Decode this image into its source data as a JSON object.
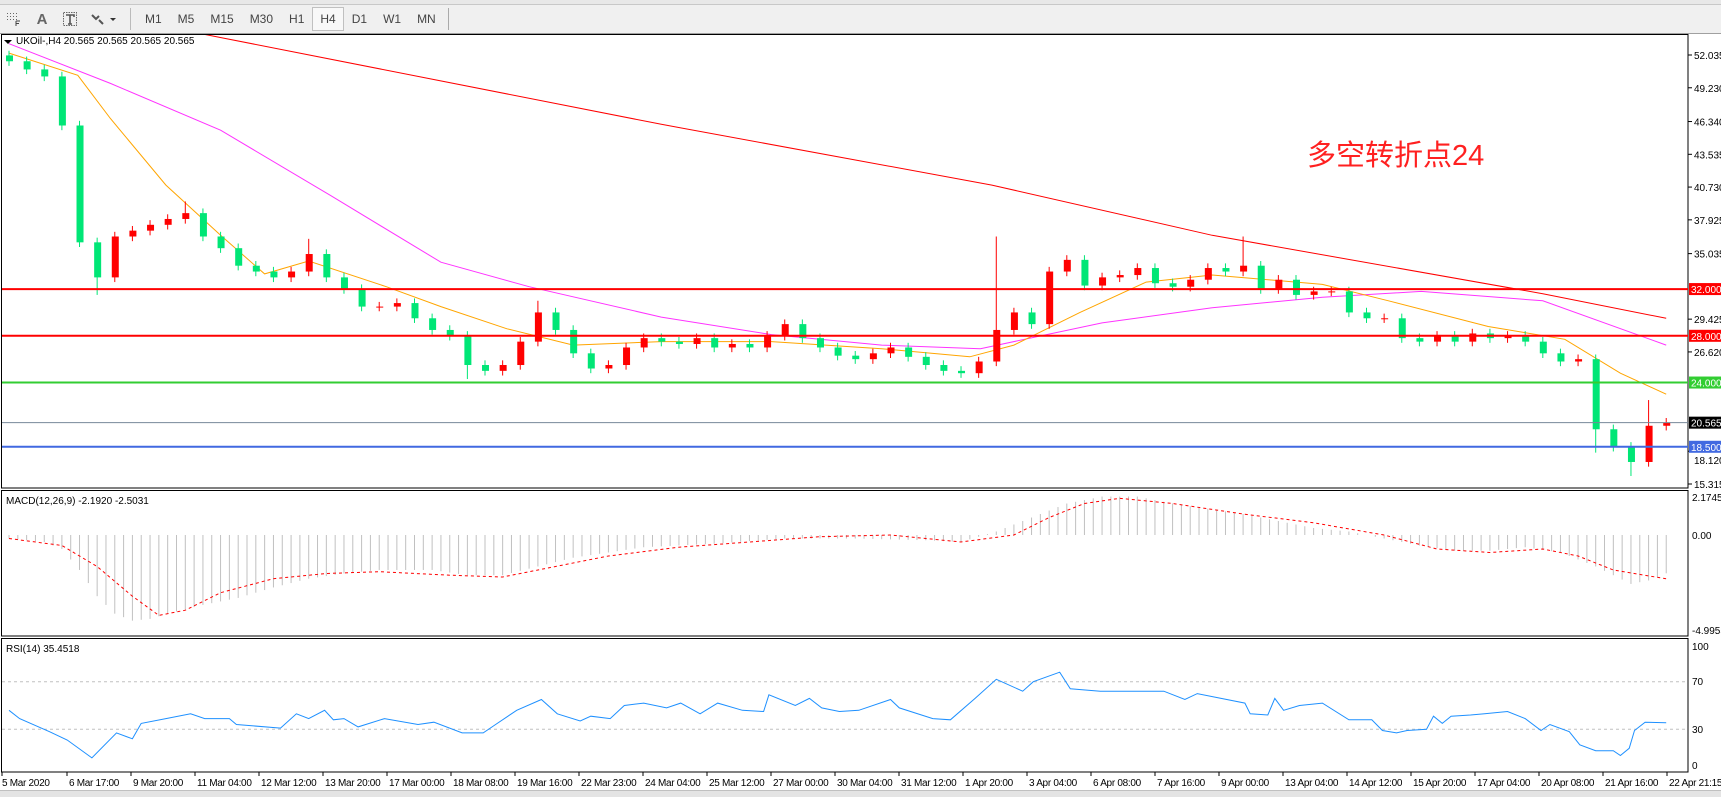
{
  "toolbar": {
    "icons": [
      "grid-period-icon",
      "text-icon",
      "text-label-icon",
      "arrows-icon"
    ],
    "text_tool": "A",
    "timeframes": [
      "M1",
      "M5",
      "M15",
      "M30",
      "H1",
      "H4",
      "D1",
      "W1",
      "MN"
    ],
    "active_timeframe": "H4"
  },
  "main_panel": {
    "title": "UKOil-,H4  20.565 20.565 20.565 20.565",
    "annotation": "多空转折点24",
    "annotation_color": "#ff2020"
  },
  "macd_panel": {
    "label": "MACD(12,26,9) -2.1920 -2.5031",
    "axis_ticks": [
      "2.1745",
      "0.00",
      "-4.9955"
    ]
  },
  "rsi_panel": {
    "label": "RSI(14) 35.4518",
    "axis_ticks": [
      "100",
      "70",
      "30",
      "0"
    ]
  },
  "chart_data": {
    "type": "candlestick",
    "symbol": "UKOil-",
    "timeframe": "H4",
    "ylim": [
      15.315,
      53.6
    ],
    "price_ticks": [
      "52.035",
      "49.230",
      "46.340",
      "43.535",
      "40.730",
      "37.925",
      "35.035",
      "29.425",
      "26.620",
      "18.120",
      "15.315"
    ],
    "x_tick_labels": [
      "5 Mar 2020",
      "6 Mar 17:00",
      "9 Mar 20:00",
      "11 Mar 04:00",
      "12 Mar 12:00",
      "13 Mar 20:00",
      "17 Mar 00:00",
      "18 Mar 08:00",
      "19 Mar 16:00",
      "22 Mar 23:00",
      "24 Mar 04:00",
      "25 Mar 12:00",
      "27 Mar 00:00",
      "30 Mar 04:00",
      "31 Mar 12:00",
      "1 Apr 20:00",
      "3 Apr 04:00",
      "6 Apr 08:00",
      "7 Apr 16:00",
      "9 Apr 00:00",
      "13 Apr 04:00",
      "14 Apr 12:00",
      "15 Apr 20:00",
      "17 Apr 04:00",
      "20 Apr 08:00",
      "21 Apr 16:00",
      "22 Apr 21:15"
    ],
    "colors": {
      "up": "#ff0000",
      "down": "#00e676",
      "ma_slow": "#ff0000",
      "ma_mid": "#ff33ff",
      "ma_fast": "#ffa500"
    },
    "first_open": 52.0,
    "close": [
      51.5,
      50.8,
      50.2,
      46.0,
      36.0,
      33.0,
      36.5,
      37.0,
      37.5,
      38.0,
      38.5,
      36.5,
      35.5,
      34.0,
      33.5,
      33.0,
      33.5,
      35.0,
      33.0,
      32.0,
      30.5,
      30.5,
      30.8,
      29.5,
      28.5,
      28.0,
      25.5,
      25.0,
      25.5,
      27.5,
      30.0,
      28.5,
      26.5,
      25.2,
      25.5,
      27.0,
      27.8,
      27.5,
      27.3,
      27.8,
      27.0,
      27.3,
      27.0,
      28.0,
      29.0,
      27.8,
      27.0,
      26.3,
      26.0,
      26.5,
      27.0,
      26.2,
      25.5,
      25.0,
      24.8,
      25.8,
      28.5,
      30.0,
      29.0,
      33.5,
      34.5,
      32.3,
      33.0,
      33.2,
      33.8,
      32.5,
      32.2,
      32.8,
      33.8,
      33.5,
      34.0,
      32.0,
      32.8,
      31.5,
      31.8,
      31.8,
      30.0,
      29.5,
      29.5,
      27.8,
      27.5,
      28.0,
      27.5,
      28.2,
      27.8,
      28.0,
      27.5,
      26.5,
      25.8,
      26.0,
      20.0,
      18.5,
      17.2,
      20.3,
      20.565
    ],
    "high_extremes": {
      "10": 39.5,
      "17": 36.3,
      "30": 31.0,
      "56": 36.5,
      "70": 36.5,
      "93": 22.5
    },
    "low_extremes": {
      "5": 31.5,
      "26": 24.3,
      "90": 18.0,
      "92": 16.0
    },
    "moving_averages": [
      {
        "color": "#ff0000",
        "points": [
          [
            10.75,
            53.9
          ],
          [
            37,
            46.1
          ],
          [
            55.75,
            40.9
          ],
          [
            68.25,
            36.6
          ],
          [
            87,
            31.6
          ],
          [
            94,
            29.5
          ]
        ]
      },
      {
        "color": "#ff33ff",
        "points": [
          [
            0,
            53
          ],
          [
            5.75,
            49.6
          ],
          [
            12,
            45.6
          ],
          [
            18.25,
            40
          ],
          [
            24.5,
            34.3
          ],
          [
            29.5,
            32.2
          ],
          [
            37,
            29.6
          ],
          [
            43.25,
            28.1
          ],
          [
            49.5,
            27.2
          ],
          [
            55.1,
            26.9
          ],
          [
            62,
            29.1
          ],
          [
            68.25,
            30.4
          ],
          [
            74.5,
            31.3
          ],
          [
            80.1,
            31.8
          ],
          [
            87,
            31
          ],
          [
            94,
            27.2
          ]
        ]
      },
      {
        "color": "#ffa500",
        "points": [
          [
            0,
            52.2
          ],
          [
            3.9,
            50.3
          ],
          [
            5.75,
            46.6
          ],
          [
            8.9,
            40.9
          ],
          [
            12,
            36.6
          ],
          [
            14.5,
            33.3
          ],
          [
            17,
            34.4
          ],
          [
            21.4,
            32.2
          ],
          [
            24.5,
            30.5
          ],
          [
            28.25,
            28.6
          ],
          [
            32,
            27.2
          ],
          [
            37,
            27.5
          ],
          [
            43.25,
            27.5
          ],
          [
            49.5,
            26.9
          ],
          [
            54.5,
            26.2
          ],
          [
            57,
            27.2
          ],
          [
            60.75,
            30
          ],
          [
            64.5,
            32.6
          ],
          [
            68.25,
            33.2
          ],
          [
            74.5,
            32.4
          ],
          [
            78.25,
            31
          ],
          [
            83.9,
            28.8
          ],
          [
            88.25,
            27.7
          ],
          [
            91.4,
            24.8
          ],
          [
            94,
            23.0
          ]
        ]
      }
    ],
    "horizontal_lines": [
      {
        "value": 32.0,
        "label": "32.000",
        "color": "#ff0000",
        "label_text_color": "#ffffff",
        "width": 2
      },
      {
        "value": 28.0,
        "label": "28.000",
        "color": "#ff0000",
        "label_text_color": "#ffffff",
        "width": 2
      },
      {
        "value": 24.0,
        "label": "24.000",
        "color": "#32cd32",
        "label_text_color": "#ffffff",
        "width": 2
      },
      {
        "value": 20.565,
        "label": "20.565",
        "color": "#778899",
        "label_bg": "#000000",
        "label_text_color": "#ffffff",
        "width": 1
      },
      {
        "value": 18.5,
        "label": "18.500",
        "color": "#4169e1",
        "label_text_color": "#ffffff",
        "width": 2
      }
    ],
    "macd": {
      "ylim": [
        -4.9955,
        2.1745
      ],
      "main": [
        [
          0,
          -0.2
        ],
        [
          2,
          -0.4
        ],
        [
          3,
          -0.8
        ],
        [
          4,
          -2.0
        ],
        [
          5,
          -3.5
        ],
        [
          6,
          -4.5
        ],
        [
          7,
          -4.9
        ],
        [
          8,
          -4.8
        ],
        [
          9,
          -4.5
        ],
        [
          11,
          -4.0
        ],
        [
          13,
          -3.6
        ],
        [
          15,
          -3.0
        ],
        [
          17,
          -2.5
        ],
        [
          19,
          -2.2
        ],
        [
          21,
          -2.0
        ],
        [
          24,
          -2.0
        ],
        [
          26,
          -2.3
        ],
        [
          28,
          -2.3
        ],
        [
          30,
          -1.8
        ],
        [
          32,
          -1.3
        ],
        [
          34,
          -1.0
        ],
        [
          36,
          -0.7
        ],
        [
          40,
          -0.5
        ],
        [
          44,
          -0.2
        ],
        [
          48,
          -0.2
        ],
        [
          52,
          -0.3
        ],
        [
          54,
          -0.4
        ],
        [
          56,
          0.2
        ],
        [
          58,
          1.0
        ],
        [
          60,
          1.8
        ],
        [
          62,
          2.2
        ],
        [
          64,
          2.2
        ],
        [
          66,
          1.8
        ],
        [
          68,
          1.5
        ],
        [
          70,
          1.2
        ],
        [
          72,
          0.8
        ],
        [
          74,
          0.4
        ],
        [
          76,
          0.2
        ],
        [
          78,
          -0.2
        ],
        [
          80,
          -0.6
        ],
        [
          82,
          -0.9
        ],
        [
          84,
          -0.9
        ],
        [
          86,
          -0.7
        ],
        [
          88,
          -1.0
        ],
        [
          90,
          -1.8
        ],
        [
          92,
          -2.8
        ],
        [
          93,
          -2.6
        ],
        [
          94,
          -2.192
        ]
      ],
      "signal": [
        [
          0,
          -0.2
        ],
        [
          3,
          -0.6
        ],
        [
          5,
          -1.8
        ],
        [
          7,
          -3.5
        ],
        [
          8.5,
          -4.6
        ],
        [
          10,
          -4.3
        ],
        [
          12,
          -3.3
        ],
        [
          15,
          -2.5
        ],
        [
          18,
          -2.2
        ],
        [
          21,
          -2.1
        ],
        [
          25,
          -2.3
        ],
        [
          28,
          -2.4
        ],
        [
          31,
          -1.8
        ],
        [
          34,
          -1.2
        ],
        [
          38,
          -0.7
        ],
        [
          42,
          -0.4
        ],
        [
          46,
          -0.1
        ],
        [
          50,
          0.0
        ],
        [
          54,
          -0.4
        ],
        [
          57,
          0.0
        ],
        [
          59,
          1.0
        ],
        [
          61,
          1.8
        ],
        [
          63,
          2.1
        ],
        [
          66,
          1.8
        ],
        [
          70,
          1.2
        ],
        [
          74,
          0.7
        ],
        [
          78,
          0.0
        ],
        [
          81,
          -0.8
        ],
        [
          84,
          -1.0
        ],
        [
          87,
          -0.8
        ],
        [
          89,
          -1.2
        ],
        [
          91,
          -2.0
        ],
        [
          94,
          -2.5031
        ]
      ],
      "hist_color": "#c0c0c0",
      "signal_color": "#ff0000"
    },
    "rsi": {
      "ylim": [
        0,
        100
      ],
      "levels": [
        70,
        30
      ],
      "color": "#1e90ff",
      "points": [
        [
          0,
          46
        ],
        [
          0.6,
          39
        ],
        [
          2.3,
          28
        ],
        [
          3.3,
          21
        ],
        [
          4.7,
          6
        ],
        [
          6.1,
          27
        ],
        [
          7.0,
          22
        ],
        [
          7.5,
          35
        ],
        [
          8.9,
          39
        ],
        [
          10.3,
          43
        ],
        [
          11.1,
          39
        ],
        [
          12.5,
          39
        ],
        [
          12.9,
          34
        ],
        [
          15.4,
          31
        ],
        [
          16.3,
          43
        ],
        [
          17.0,
          39
        ],
        [
          17.9,
          46
        ],
        [
          18.4,
          38
        ],
        [
          19.0,
          39
        ],
        [
          19.8,
          32
        ],
        [
          21.3,
          39
        ],
        [
          23.2,
          34
        ],
        [
          24.1,
          36
        ],
        [
          25.7,
          27
        ],
        [
          26.9,
          27
        ],
        [
          27.6,
          34
        ],
        [
          28.8,
          46
        ],
        [
          30.2,
          55
        ],
        [
          31.1,
          43
        ],
        [
          32.4,
          37
        ],
        [
          33.0,
          41
        ],
        [
          34.1,
          39
        ],
        [
          34.9,
          50
        ],
        [
          36.0,
          52
        ],
        [
          37.3,
          48
        ],
        [
          38.1,
          52
        ],
        [
          39.2,
          43
        ],
        [
          40.2,
          52
        ],
        [
          41.6,
          46
        ],
        [
          42.8,
          45
        ],
        [
          43.1,
          59
        ],
        [
          44.6,
          50
        ],
        [
          45.4,
          56
        ],
        [
          46.1,
          48
        ],
        [
          47.1,
          45
        ],
        [
          48.2,
          46
        ],
        [
          50.0,
          55
        ],
        [
          50.5,
          48
        ],
        [
          52.4,
          39
        ],
        [
          53.4,
          38
        ],
        [
          54.8,
          56
        ],
        [
          56.0,
          72
        ],
        [
          57.5,
          62
        ],
        [
          58.1,
          70
        ],
        [
          59.6,
          78
        ],
        [
          60.2,
          64
        ],
        [
          61.9,
          62
        ],
        [
          65.5,
          62
        ],
        [
          66.7,
          55
        ],
        [
          67.4,
          60
        ],
        [
          70.1,
          52
        ],
        [
          70.4,
          43
        ],
        [
          71.4,
          42
        ],
        [
          71.8,
          56
        ],
        [
          72.3,
          46
        ],
        [
          73.2,
          50
        ],
        [
          74.5,
          52
        ],
        [
          76.0,
          38
        ],
        [
          77.3,
          38
        ],
        [
          77.9,
          29
        ],
        [
          78.7,
          27
        ],
        [
          79.3,
          29
        ],
        [
          80.4,
          30
        ],
        [
          80.8,
          41
        ],
        [
          81.3,
          35
        ],
        [
          81.8,
          41
        ],
        [
          82.9,
          42
        ],
        [
          83.7,
          43
        ],
        [
          85.0,
          45
        ],
        [
          86.0,
          39
        ],
        [
          86.9,
          29
        ],
        [
          87.4,
          34
        ],
        [
          88.5,
          28
        ],
        [
          89.1,
          17
        ],
        [
          90.0,
          12
        ],
        [
          91.0,
          12
        ],
        [
          91.4,
          8
        ],
        [
          91.9,
          14
        ],
        [
          92.2,
          29
        ],
        [
          92.8,
          36
        ],
        [
          94.0,
          35.4518
        ]
      ]
    }
  }
}
